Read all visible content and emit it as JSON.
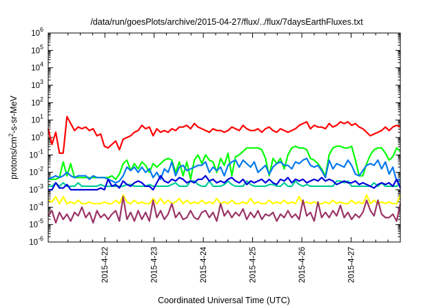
{
  "chart_data": {
    "type": "line",
    "title": "/data/run/goesPlots/archive/2015-04-27/flux/../flux/7daysEarthFluxes.txt",
    "xlabel": "Coordinated Universal Time (UTC)",
    "ylabel": {
      "prefix": "protons/cm",
      "sup": "2",
      "suffix": "-s-sr-MeV"
    },
    "yscale": "log",
    "ylim": [
      1e-06,
      1000000.0
    ],
    "xlim": [
      -1.15,
      6.0
    ],
    "y_ticks": [
      {
        "base": "10",
        "exp": "6"
      },
      {
        "base": "10",
        "exp": "5"
      },
      {
        "base": "10",
        "exp": "4"
      },
      {
        "base": "10",
        "exp": "3"
      },
      {
        "base": "10",
        "exp": "2"
      },
      {
        "base": "10",
        "exp": "1"
      },
      {
        "base": "10",
        "exp": "0"
      },
      {
        "base": "10",
        "exp": "-1"
      },
      {
        "base": "10",
        "exp": "-2"
      },
      {
        "base": "10",
        "exp": "-3"
      },
      {
        "base": "10",
        "exp": "-4"
      },
      {
        "base": "10",
        "exp": "-5"
      },
      {
        "base": "10",
        "exp": "-6"
      }
    ],
    "x_ticks": [
      "2015-4-22",
      "2015-4-23",
      "2015-4-24",
      "2015-4-25",
      "2015-4-26",
      "2015-4-27"
    ],
    "grid": false,
    "legend": "none",
    "series": [
      {
        "color": "#ff0000",
        "log10": [
          0.5,
          -0.4,
          0.3,
          -0.9,
          -0.9,
          1.2,
          0.8,
          0.4,
          0.6,
          0.5,
          0.6,
          0.4,
          0.5,
          0.1,
          0.2,
          -0.5,
          -0.6,
          -0.4,
          -0.2,
          -0.7,
          -0.1,
          0.0,
          0.1,
          0.3,
          0.4,
          0.7,
          0.5,
          0.6,
          0.1,
          0.5,
          0.3,
          0.4,
          0.3,
          0.5,
          0.4,
          0.6,
          0.6,
          0.7,
          0.5,
          0.8,
          0.6,
          0.5,
          0.4,
          0.3,
          0.5,
          0.4,
          0.4,
          0.3,
          0.4,
          0.6,
          0.5,
          0.4,
          0.7,
          0.5,
          0.4,
          0.4,
          0.5,
          0.3,
          0.5,
          0.6,
          0.4,
          0.3,
          0.5,
          0.4,
          0.3,
          0.4,
          0.5,
          0.7,
          0.8,
          0.9,
          0.5,
          0.7,
          0.6,
          0.6,
          0.5,
          0.8,
          0.6,
          0.7,
          0.9,
          0.8,
          0.9,
          0.7,
          0.8,
          0.6,
          0.5,
          0.3,
          0.1,
          0.2,
          0.3,
          0.4,
          0.6,
          0.4,
          0.6,
          0.7,
          0.6
        ]
      },
      {
        "color": "#00ff00",
        "log10": [
          -2.4,
          -2.4,
          -2.4,
          -2.3,
          -1.4,
          -2.2,
          -1.5,
          -2.3,
          -2.3,
          -2.3,
          -2.3,
          -2.3,
          -2.3,
          -2.3,
          -2.3,
          -2.3,
          -2.3,
          -2.2,
          -2.4,
          -2.1,
          -1.5,
          -1.3,
          -1.9,
          -1.5,
          -1.8,
          -1.4,
          -1.6,
          -2.0,
          -1.5,
          -1.7,
          -1.5,
          -1.3,
          -1.2,
          -1.3,
          -2.0,
          -1.4,
          -2.2,
          -1.4,
          -2.4,
          -1.3,
          -1.0,
          -1.5,
          -1.0,
          -1.3,
          -1.4,
          -2.0,
          -1.2,
          -1.6,
          -0.9,
          -2.2,
          -1.1,
          -1.0,
          -0.8,
          -0.6,
          -0.6,
          -0.6,
          -0.6,
          -0.7,
          -1.2,
          -2.2,
          -1.2,
          -1.5,
          -1.2,
          -1.8,
          -1.0,
          -0.6,
          -0.5,
          -0.6,
          -0.6,
          -0.7,
          -1.2,
          -1.3,
          -1.5,
          -1.8,
          -2.2,
          -1.0,
          -0.6,
          -0.5,
          -0.5,
          -0.6,
          -0.6,
          -0.5,
          -1.3,
          -2.2,
          -2.2,
          -1.5,
          -1.0,
          -0.7,
          -0.6,
          -0.6,
          -0.9,
          -1.3,
          -1.1,
          -0.6,
          -0.8
        ]
      },
      {
        "color": "#00cc99",
        "log10": [
          -2.8,
          -2.8,
          -2.6,
          -2.8,
          -2.6,
          -2.8,
          -2.8,
          -2.8,
          -2.6,
          -2.8,
          -2.8,
          -2.8,
          -2.8,
          -2.8,
          -2.7,
          -2.8,
          -2.8,
          -2.8,
          -2.8,
          -2.8,
          -2.8,
          -2.7,
          -2.7,
          -2.8,
          -2.8,
          -2.8,
          -2.8,
          -2.7,
          -2.8,
          -2.8,
          -2.8,
          -2.8,
          -2.8,
          -2.7,
          -2.6,
          -2.8,
          -2.8,
          -2.8,
          -2.5,
          -2.5,
          -2.7,
          -2.8,
          -2.8,
          -2.5,
          -2.8,
          -2.8,
          -2.8,
          -2.7,
          -2.5,
          -2.7,
          -2.8,
          -2.8,
          -2.8,
          -2.5,
          -2.7,
          -2.8,
          -2.8,
          -2.8,
          -2.8,
          -2.7,
          -2.7,
          -2.8,
          -2.8,
          -2.6,
          -2.8,
          -2.8,
          -2.5,
          -2.7,
          -2.8,
          -2.7,
          -2.8,
          -2.8,
          -2.8,
          -2.8,
          -2.8,
          -2.8,
          -2.8,
          -2.5,
          -2.5,
          -2.6,
          -2.5,
          -2.8,
          -2.8,
          -2.8,
          -2.8,
          -2.8,
          -2.8,
          -2.6,
          -2.8,
          -2.6,
          -2.8,
          -2.8,
          -2.8,
          -2.8,
          -2.6
        ]
      },
      {
        "color": "#0077ee",
        "log10": [
          -2.4,
          -2.3,
          -2.2,
          -2.3,
          -2.2,
          -2.0,
          -2.2,
          -2.3,
          -2.2,
          -2.2,
          -2.2,
          -2.4,
          -2.2,
          -2.3,
          -2.3,
          -2.3,
          -2.4,
          -2.5,
          -2.6,
          -2.5,
          -2.2,
          -1.7,
          -1.9,
          -1.7,
          -2.0,
          -1.7,
          -2.0,
          -1.8,
          -2.3,
          -2.0,
          -2.4,
          -1.8,
          -2.0,
          -1.4,
          -2.2,
          -1.7,
          -1.6,
          -1.9,
          -1.8,
          -1.7,
          -1.6,
          -1.6,
          -1.4,
          -2.0,
          -1.7,
          -1.9,
          -1.7,
          -2.2,
          -1.6,
          -1.4,
          -1.3,
          -1.7,
          -1.3,
          -1.5,
          -1.7,
          -1.4,
          -2.0,
          -1.8,
          -1.6,
          -2.1,
          -1.7,
          -1.5,
          -1.4,
          -1.6,
          -1.6,
          -1.8,
          -1.4,
          -1.5,
          -1.3,
          -1.2,
          -1.6,
          -1.7,
          -1.6,
          -1.9,
          -2.3,
          -1.3,
          -1.8,
          -1.5,
          -1.6,
          -1.7,
          -1.3,
          -1.6,
          -2.1,
          -2.2,
          -1.9,
          -1.6,
          -1.5,
          -1.6,
          -1.3,
          -1.8,
          -1.4,
          -2.1,
          -1.7,
          -2.5,
          -2.4
        ]
      },
      {
        "color": "#0000dd",
        "log10": [
          -3.0,
          -3.0,
          -2.6,
          -2.9,
          -2.9,
          -2.7,
          -3.0,
          -3.0,
          -3.0,
          -3.0,
          -3.0,
          -3.0,
          -3.0,
          -3.0,
          -2.9,
          -3.0,
          -2.4,
          -2.8,
          -2.7,
          -2.9,
          -2.5,
          -2.7,
          -2.8,
          -2.6,
          -2.5,
          -2.6,
          -2.8,
          -2.8,
          -3.0,
          -2.6,
          -2.2,
          -2.5,
          -2.6,
          -2.4,
          -2.5,
          -2.3,
          -2.4,
          -2.6,
          -2.5,
          -2.6,
          -2.4,
          -2.4,
          -2.2,
          -2.5,
          -2.4,
          -2.6,
          -2.5,
          -2.6,
          -2.4,
          -2.3,
          -2.5,
          -2.6,
          -2.4,
          -2.7,
          -2.5,
          -2.6,
          -2.5,
          -2.4,
          -2.6,
          -2.4,
          -2.6,
          -2.7,
          -2.4,
          -2.5,
          -2.3,
          -2.6,
          -2.4,
          -2.5,
          -2.4,
          -2.6,
          -2.5,
          -2.4,
          -2.5,
          -2.3,
          -2.5,
          -2.4,
          -2.5,
          -2.7,
          -2.6,
          -2.5,
          -2.6,
          -2.6,
          -2.5,
          -2.7,
          -2.6,
          -2.7,
          -2.8,
          -2.9,
          -2.7,
          -2.6,
          -2.7,
          -2.6,
          -2.8,
          -2.4,
          -2.9
        ]
      },
      {
        "color": "#ffff00",
        "log10": [
          -3.6,
          -3.7,
          -3.4,
          -3.8,
          -3.4,
          -3.8,
          -3.7,
          -3.8,
          -3.6,
          -3.8,
          -3.8,
          -3.7,
          -3.8,
          -3.8,
          -3.8,
          -3.7,
          -3.8,
          -3.8,
          -3.6,
          -3.8,
          -3.3,
          -3.7,
          -3.8,
          -3.6,
          -3.8,
          -3.7,
          -3.8,
          -3.8,
          -3.5,
          -3.8,
          -3.5,
          -3.8,
          -3.6,
          -3.8,
          -3.7,
          -3.5,
          -3.8,
          -3.6,
          -3.8,
          -3.7,
          -3.8,
          -3.6,
          -3.8,
          -3.7,
          -3.8,
          -3.5,
          -3.8,
          -3.7,
          -3.8,
          -3.6,
          -3.8,
          -3.8,
          -3.7,
          -3.8,
          -3.5,
          -3.8,
          -3.7,
          -3.8,
          -3.8,
          -3.6,
          -3.8,
          -3.7,
          -3.8,
          -3.6,
          -3.8,
          -3.7,
          -3.8,
          -3.4,
          -3.8,
          -3.7,
          -3.8,
          -3.7,
          -3.8,
          -3.8,
          -3.7,
          -3.8,
          -3.6,
          -3.8,
          -3.7,
          -3.8,
          -3.8,
          -3.6,
          -3.8,
          -3.7,
          -3.8,
          -3.3,
          -3.8,
          -3.6,
          -3.8,
          -3.7,
          -3.8,
          -3.7,
          -3.8,
          -3.8,
          -3.3
        ]
      },
      {
        "color": "#993366",
        "log10": [
          -4.5,
          -4.2,
          -4.9,
          -4.3,
          -4.7,
          -4.4,
          -4.8,
          -4.3,
          -4.5,
          -4.0,
          -4.6,
          -4.3,
          -4.9,
          -4.2,
          -4.6,
          -4.4,
          -4.7,
          -4.4,
          -4.2,
          -4.8,
          -3.4,
          -4.7,
          -4.3,
          -4.8,
          -4.2,
          -4.7,
          -4.3,
          -4.8,
          -3.6,
          -4.6,
          -4.2,
          -4.7,
          -4.4,
          -3.8,
          -4.6,
          -4.3,
          -4.7,
          -4.6,
          -4.2,
          -4.6,
          -4.7,
          -4.3,
          -4.2,
          -4.6,
          -4.3,
          -4.8,
          -3.8,
          -4.5,
          -4.2,
          -4.6,
          -4.3,
          -4.5,
          -4.1,
          -4.7,
          -4.3,
          -4.6,
          -4.2,
          -4.7,
          -4.4,
          -4.5,
          -4.3,
          -4.8,
          -4.4,
          -4.6,
          -4.2,
          -4.6,
          -4.4,
          -4.7,
          -3.6,
          -4.5,
          -4.3,
          -4.8,
          -3.7,
          -4.6,
          -4.3,
          -4.6,
          -4.2,
          -4.5,
          -3.9,
          -4.6,
          -4.3,
          -4.7,
          -4.4,
          -4.6,
          -4.3,
          -3.6,
          -4.2,
          -4.5,
          -3.6,
          -4.4,
          -4.6,
          -4.6,
          -4.4,
          -4.8,
          -3.8
        ]
      }
    ]
  }
}
